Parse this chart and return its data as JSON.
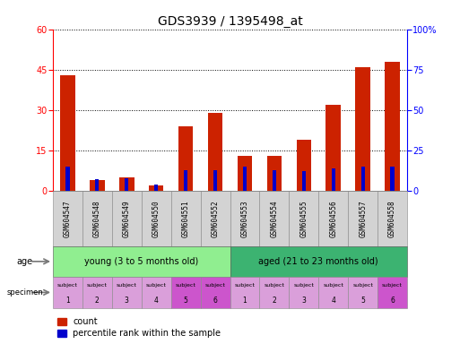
{
  "title": "GDS3939 / 1395498_at",
  "samples": [
    "GSM604547",
    "GSM604548",
    "GSM604549",
    "GSM604550",
    "GSM604551",
    "GSM604552",
    "GSM604553",
    "GSM604554",
    "GSM604555",
    "GSM604556",
    "GSM604557",
    "GSM604558"
  ],
  "count_values": [
    43,
    4,
    5,
    2,
    24,
    29,
    13,
    13,
    19,
    32,
    46,
    48
  ],
  "percentile_values": [
    15,
    7,
    8,
    4,
    13,
    13,
    15,
    13,
    12,
    14,
    15,
    15
  ],
  "ylim_left": [
    0,
    60
  ],
  "ylim_right": [
    0,
    100
  ],
  "yticks_left": [
    0,
    15,
    30,
    45,
    60
  ],
  "yticks_right": [
    0,
    25,
    50,
    75,
    100
  ],
  "age_groups": [
    {
      "label": "young (3 to 5 months old)",
      "start": 0,
      "end": 6,
      "color": "#90ee90"
    },
    {
      "label": "aged (21 to 23 months old)",
      "start": 6,
      "end": 12,
      "color": "#3cb371"
    }
  ],
  "specimen_colors": [
    "#da9fda",
    "#da9fda",
    "#da9fda",
    "#da9fda",
    "#cc55cc",
    "#cc55cc",
    "#da9fda",
    "#da9fda",
    "#da9fda",
    "#da9fda",
    "#da9fda",
    "#cc55cc"
  ],
  "specimen_numbers": [
    1,
    2,
    3,
    4,
    5,
    6,
    1,
    2,
    3,
    4,
    5,
    6
  ],
  "bar_color_count": "#cc2200",
  "bar_color_pct": "#0000cc",
  "bar_width": 0.5,
  "title_fontsize": 10,
  "tick_fontsize": 7,
  "sample_fontsize": 5.5,
  "annot_fontsize": 7,
  "legend_fontsize": 7
}
